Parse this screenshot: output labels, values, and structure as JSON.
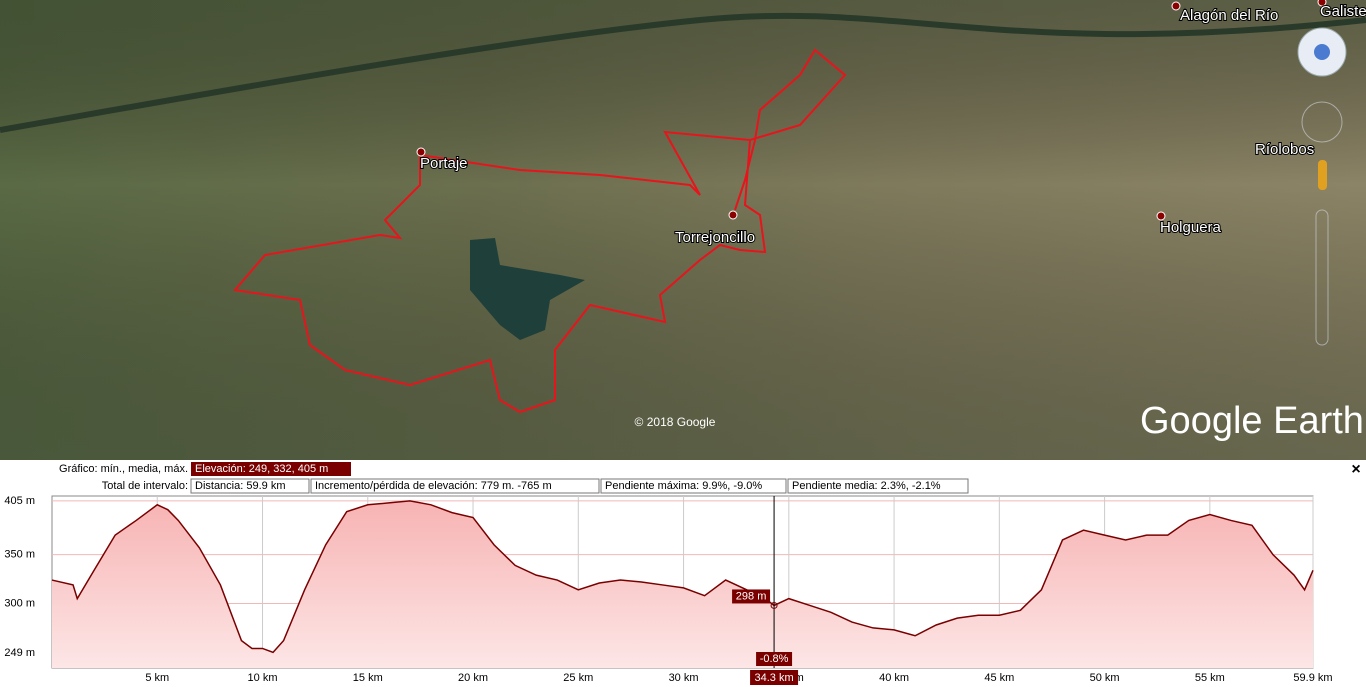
{
  "map": {
    "places": [
      "Alagón del Río",
      "Galiste",
      "Portaje",
      "Torrejoncillo",
      "Ríolobos",
      "Holguera"
    ],
    "copyright": "© 2018 Google",
    "brand": "Google Earth"
  },
  "profile": {
    "summary_label": "Gráfico: mín., media, máx.",
    "elevation": "Elevación: 249, 332, 405 m",
    "interval_label": "Total de intervalo:",
    "distance": "Distancia: 59.9 km",
    "gain_loss": "Incremento/pérdida de elevación: 779 m. -765 m",
    "max_slope": "Pendiente máxima: 9.9%, -9.0%",
    "avg_slope": "Pendiente media: 2.3%, -2.1%",
    "close": "×"
  },
  "chart_data": {
    "type": "area",
    "color": "#7a0000",
    "fill": "#f6b8b8",
    "x": [
      0,
      1,
      1.2,
      2,
      3,
      4,
      5,
      5.5,
      6,
      7,
      8,
      9,
      9.5,
      10,
      10.5,
      11,
      12,
      13,
      14,
      15,
      16,
      17,
      18,
      19,
      20,
      21,
      22,
      23,
      24,
      25,
      26,
      27,
      28,
      29,
      30,
      31,
      32,
      33,
      34,
      34.3,
      35,
      36,
      37,
      38,
      39,
      40,
      41,
      42,
      43,
      44,
      45,
      46,
      47,
      48,
      49,
      50,
      51,
      52,
      53,
      54,
      55,
      56,
      57,
      58,
      59,
      59.5,
      59.9
    ],
    "values": [
      324,
      319,
      305,
      334,
      370,
      385,
      401,
      396,
      385,
      357,
      319,
      262,
      254,
      254,
      250,
      262,
      314,
      360,
      394,
      401,
      403,
      405,
      401,
      393,
      388,
      360,
      339,
      329,
      324,
      314,
      321,
      324,
      322,
      319,
      316,
      308,
      324,
      314,
      303,
      298,
      305,
      298,
      291,
      281,
      275,
      273,
      267,
      278,
      285,
      288,
      288,
      293,
      314,
      365,
      375,
      370,
      365,
      370,
      370,
      385,
      391,
      385,
      380,
      350,
      329,
      314,
      334
    ],
    "xlim": [
      0,
      59.9
    ],
    "ylim": [
      234,
      410
    ],
    "xticks": [
      {
        "value": 5,
        "label": "5 km"
      },
      {
        "value": 10,
        "label": "10 km"
      },
      {
        "value": 15,
        "label": "15 km"
      },
      {
        "value": 20,
        "label": "20 km"
      },
      {
        "value": 25,
        "label": "25 km"
      },
      {
        "value": 30,
        "label": "30 km"
      },
      {
        "value": 35,
        "label": "35 km"
      },
      {
        "value": 40,
        "label": "40 km"
      },
      {
        "value": 45,
        "label": "45 km"
      },
      {
        "value": 50,
        "label": "50 km"
      },
      {
        "value": 55,
        "label": "55 km"
      },
      {
        "value": 59.9,
        "label": "59.9 km"
      }
    ],
    "yticks": [
      {
        "value": 249,
        "label": "249 m"
      },
      {
        "value": 300,
        "label": "300 m"
      },
      {
        "value": 350,
        "label": "350 m"
      },
      {
        "value": 405,
        "label": "405 m"
      }
    ],
    "grid": true,
    "cursor": {
      "x": {
        "value": 34.3,
        "label": "34.3 km"
      },
      "value": {
        "value": 298,
        "label": "298 m"
      },
      "slope": "-0.8%"
    }
  }
}
